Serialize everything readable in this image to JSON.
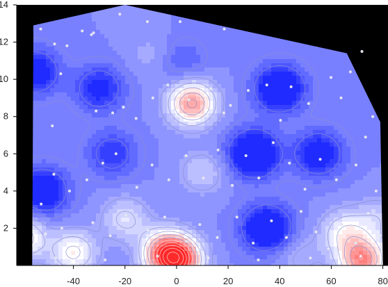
{
  "chart_data": {
    "type": "heatmap",
    "subtype": "filled-contour-with-scatter-points",
    "title": "",
    "xlabel": "",
    "ylabel": "",
    "xlim": [
      -62,
      82
    ],
    "ylim": [
      0,
      14
    ],
    "x_ticks": [
      -40,
      -20,
      0,
      20,
      40,
      60,
      80
    ],
    "x_tick_labels": [
      "-40",
      "-20",
      "0",
      "20",
      "40",
      "60",
      "80"
    ],
    "y_ticks": [
      2,
      4,
      6,
      8,
      10,
      12,
      14
    ],
    "y_tick_labels": [
      "2",
      "4",
      "6",
      "8",
      "10",
      "12",
      "14"
    ],
    "background_color": "#000000",
    "colormap": {
      "low": "#1f2bff",
      "mid": "#ffffff",
      "high": "#ff2a2a"
    },
    "contour_line_color": "#8a8ecf",
    "point_color": "#e6e6f0",
    "hull": [
      [
        -55.5,
        12.9
      ],
      [
        -20,
        14.0
      ],
      [
        66,
        11.4
      ],
      [
        79,
        7.7
      ],
      [
        80,
        0
      ],
      [
        -56,
        0
      ]
    ],
    "field_peaks": [
      {
        "x": -55,
        "y": 10.4,
        "v": -0.6
      },
      {
        "x": -52,
        "y": 4.0,
        "v": -0.7
      },
      {
        "x": -30,
        "y": 9.5,
        "v": -0.5
      },
      {
        "x": -25,
        "y": 6.0,
        "v": -0.4
      },
      {
        "x": -10,
        "y": 11.3,
        "v": 0.15
      },
      {
        "x": 6,
        "y": 8.7,
        "v": 1.0
      },
      {
        "x": 10,
        "y": 5.0,
        "v": 0.3
      },
      {
        "x": 2,
        "y": 11.0,
        "v": -0.2
      },
      {
        "x": 30,
        "y": 6.0,
        "v": -0.9
      },
      {
        "x": 40,
        "y": 9.5,
        "v": -0.8
      },
      {
        "x": 55,
        "y": 6.0,
        "v": -0.6
      },
      {
        "x": 35,
        "y": 2.0,
        "v": -0.8
      },
      {
        "x": -20,
        "y": 2.5,
        "v": 0.4
      },
      {
        "x": -40,
        "y": 0.7,
        "v": 0.6
      },
      {
        "x": -5,
        "y": 0.8,
        "v": 0.7
      },
      {
        "x": 0,
        "y": 0.3,
        "v": 1.6
      },
      {
        "x": -60,
        "y": 1.5,
        "v": 0.7
      },
      {
        "x": 65,
        "y": 1.8,
        "v": 0.5
      },
      {
        "x": 72,
        "y": 0.3,
        "v": 1.1
      },
      {
        "x": 78,
        "y": 2.5,
        "v": 0.3
      },
      {
        "x": 48,
        "y": 0.5,
        "v": 0.2
      }
    ],
    "points": [
      [
        -52.7,
        12.7
      ],
      [
        -47.3,
        11.9
      ],
      [
        -42.5,
        11.8
      ],
      [
        -36.6,
        12.6
      ],
      [
        -33.0,
        12.4
      ],
      [
        -32.2,
        12.5
      ],
      [
        -22.0,
        13.5
      ],
      [
        -11.3,
        13.1
      ],
      [
        1.4,
        13.1
      ],
      [
        18.5,
        12.7
      ],
      [
        -44.9,
        10.3
      ],
      [
        -48.2,
        7.5
      ],
      [
        -31.2,
        8.3
      ],
      [
        -24.8,
        8.2
      ],
      [
        -20.6,
        8.5
      ],
      [
        -15.7,
        7.9
      ],
      [
        -9.2,
        9.0
      ],
      [
        -3.4,
        9.7
      ],
      [
        4.8,
        8.9
      ],
      [
        13.2,
        9.5
      ],
      [
        18.3,
        8.2
      ],
      [
        20.9,
        8.6
      ],
      [
        27.8,
        9.4
      ],
      [
        35.0,
        9.7
      ],
      [
        40.3,
        7.8
      ],
      [
        44.4,
        9.6
      ],
      [
        51.2,
        8.7
      ],
      [
        59.9,
        10.1
      ],
      [
        63.8,
        9.0
      ],
      [
        67.4,
        10.4
      ],
      [
        71.9,
        11.5
      ],
      [
        76.1,
        8.0
      ],
      [
        -52.5,
        3.3
      ],
      [
        -47.6,
        4.9
      ],
      [
        -41.5,
        4.0
      ],
      [
        -34.8,
        4.6
      ],
      [
        -28.6,
        5.5
      ],
      [
        -23.5,
        6.0
      ],
      [
        -15.4,
        4.2
      ],
      [
        -9.5,
        5.4
      ],
      [
        -3.0,
        4.6
      ],
      [
        3.7,
        5.9
      ],
      [
        10.4,
        4.7
      ],
      [
        16.1,
        6.2
      ],
      [
        21.6,
        4.3
      ],
      [
        26.9,
        5.9
      ],
      [
        31.9,
        4.7
      ],
      [
        37.5,
        6.6
      ],
      [
        43.8,
        5.5
      ],
      [
        49.8,
        4.1
      ],
      [
        55.7,
        5.7
      ],
      [
        62.0,
        4.6
      ],
      [
        69.6,
        5.4
      ],
      [
        73.3,
        6.9
      ],
      [
        77.4,
        4.0
      ],
      [
        -50.8,
        1.7
      ],
      [
        -44.5,
        2.0
      ],
      [
        -38.1,
        1.0
      ],
      [
        -32.5,
        2.3
      ],
      [
        -25.7,
        1.6
      ],
      [
        -19.6,
        2.7
      ],
      [
        -11.2,
        1.9
      ],
      [
        -4.6,
        2.6
      ],
      [
        3.8,
        1.3
      ],
      [
        9.0,
        2.2
      ],
      [
        15.8,
        1.5
      ],
      [
        23.4,
        2.6
      ],
      [
        29.7,
        1.2
      ],
      [
        36.8,
        2.4
      ],
      [
        42.6,
        1.5
      ],
      [
        48.3,
        2.9
      ],
      [
        54.1,
        1.8
      ],
      [
        58.9,
        0.9
      ],
      [
        64.1,
        2.2
      ],
      [
        69.5,
        1.2
      ],
      [
        74.3,
        2.8
      ],
      [
        79.0,
        1.6
      ],
      [
        -46.9,
        0.4
      ],
      [
        -27.7,
        0.3
      ],
      [
        -7.4,
        0.5
      ],
      [
        12.3,
        0.4
      ],
      [
        31.7,
        0.3
      ],
      [
        51.9,
        0.4
      ],
      [
        71.4,
        0.5
      ]
    ]
  }
}
